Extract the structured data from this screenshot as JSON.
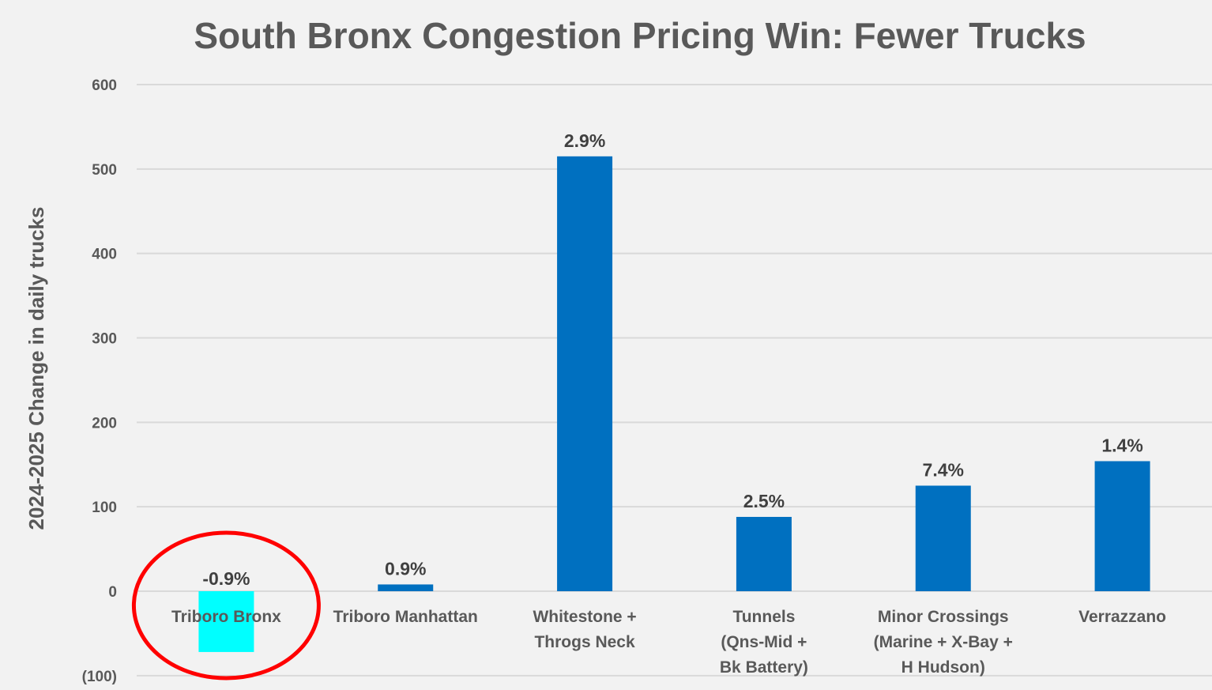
{
  "chart_data": {
    "type": "bar",
    "title": "South Bronx Congestion Pricing Win: Fewer Trucks",
    "xlabel": "",
    "ylabel": "2024-2025 Change in daily trucks",
    "ylim": [
      -100,
      600
    ],
    "yticks": [
      -100,
      0,
      100,
      200,
      300,
      400,
      500,
      600
    ],
    "ytick_labels": [
      "(100)",
      "0",
      "100",
      "200",
      "300",
      "400",
      "500",
      "600"
    ],
    "grid": true,
    "categories": [
      [
        "Triboro Bronx"
      ],
      [
        "Triboro Manhattan"
      ],
      [
        "Whitestone +",
        "Throgs Neck"
      ],
      [
        "Tunnels",
        "(Qns-Mid +",
        "Bk Battery)"
      ],
      [
        "Minor Crossings",
        "(Marine + X-Bay +",
        "H Hudson)"
      ],
      [
        "Verrazzano"
      ]
    ],
    "values": [
      -72,
      8,
      515,
      88,
      125,
      154
    ],
    "data_labels": [
      "-0.9%",
      "0.9%",
      "2.9%",
      "2.5%",
      "7.4%",
      "1.4%"
    ],
    "bar_colors": [
      "#00ffff",
      "#0070c0",
      "#0070c0",
      "#0070c0",
      "#0070c0",
      "#0070c0"
    ],
    "highlight": {
      "category_index": 0,
      "shape": "ellipse",
      "color": "#ff0000"
    }
  }
}
